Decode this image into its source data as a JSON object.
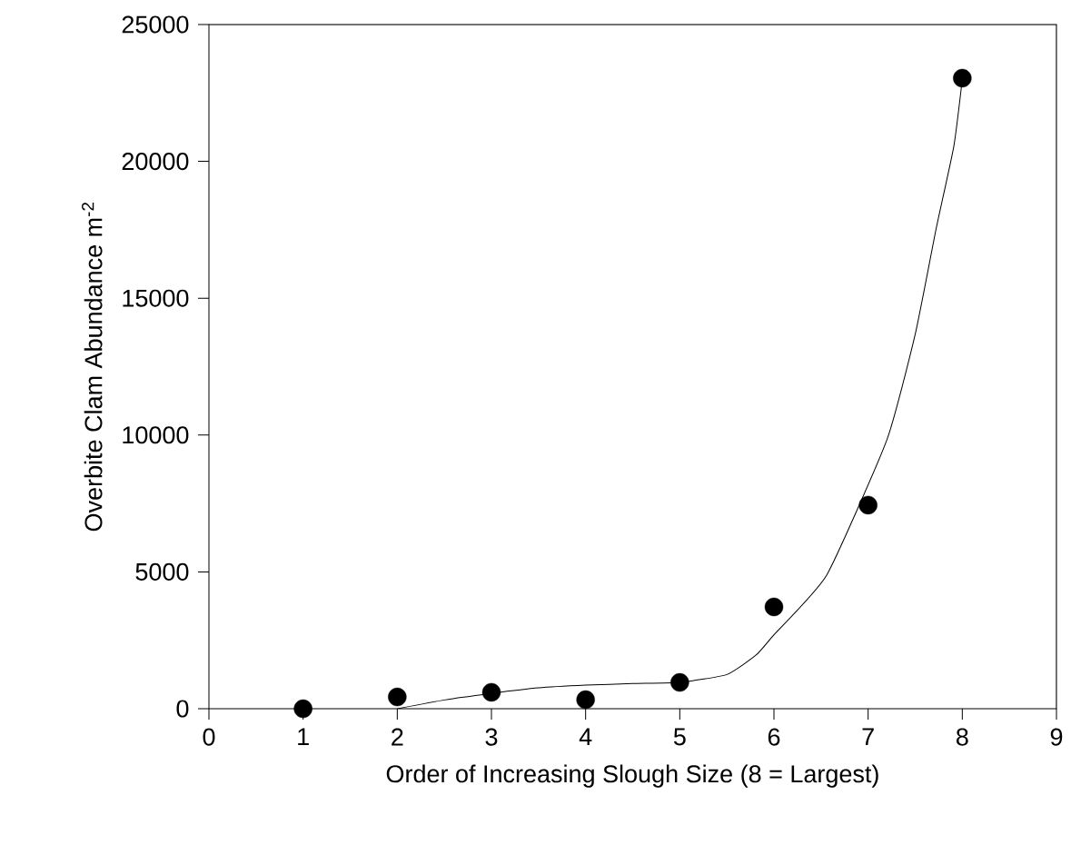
{
  "chart_data": {
    "type": "scatter",
    "xlabel": "Order of Increasing Slough Size (8 = Largest)",
    "ylabel": "Overbite Clam Abundance m$^{-2}$",
    "series": [
      {
        "color": "#000000",
        "marker": "circle",
        "x": [
          1,
          2,
          3,
          4,
          5,
          6,
          7,
          8
        ],
        "values": [
          0,
          430,
          600,
          330,
          960,
          3720,
          7440,
          23040
        ]
      },
      {
        "type": "line",
        "color": "#000000",
        "marker": "none",
        "x": [
          2,
          2.5,
          3,
          3.5,
          4,
          4.5,
          5,
          5.5,
          5.81,
          6,
          6.56,
          7.2,
          7.5,
          7.72,
          7.91,
          8
        ],
        "values": [
          0,
          320,
          560,
          760,
          860,
          920,
          960,
          1250,
          1960,
          2700,
          4880,
          9830,
          13680,
          17500,
          20550,
          23000
        ]
      }
    ],
    "xlim": [
      0,
      9
    ],
    "ylim": [
      0,
      25000
    ],
    "xticks": [
      0,
      1,
      2,
      3,
      4,
      5,
      6,
      7,
      8,
      9
    ],
    "yticks": [
      0,
      5000,
      10000,
      15000,
      20000,
      25000
    ],
    "grid": false
  }
}
